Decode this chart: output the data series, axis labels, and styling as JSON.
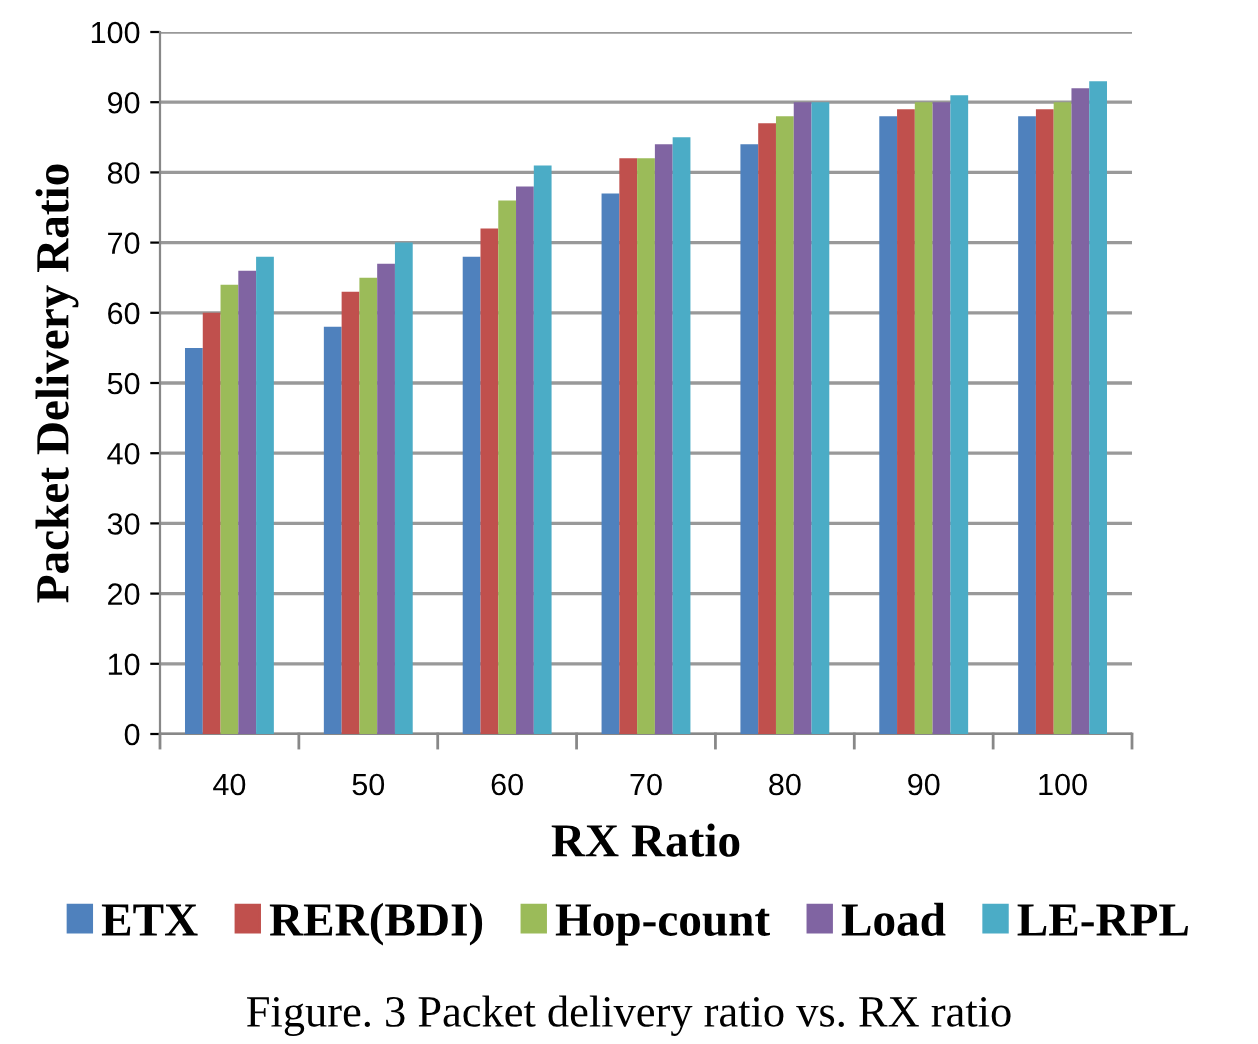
{
  "chart_data": {
    "type": "bar",
    "xlabel": "RX Ratio",
    "ylabel": "Packet Delivery Ratio",
    "categories": [
      "40",
      "50",
      "60",
      "70",
      "80",
      "90",
      "100"
    ],
    "series": [
      {
        "name": "ETX",
        "color": "#4f81bd",
        "values": [
          55,
          58,
          68,
          77,
          84,
          88,
          88
        ]
      },
      {
        "name": "RER(BDI)",
        "color": "#c0504d",
        "values": [
          60,
          63,
          72,
          82,
          87,
          89,
          89
        ]
      },
      {
        "name": "Hop-count",
        "color": "#9bbb59",
        "values": [
          64,
          65,
          76,
          82,
          88,
          90,
          90
        ]
      },
      {
        "name": "Load",
        "color": "#8064a2",
        "values": [
          66,
          67,
          78,
          84,
          90,
          90,
          92
        ]
      },
      {
        "name": "LE-RPL",
        "color": "#4bacc6",
        "values": [
          68,
          70,
          81,
          85,
          90,
          91,
          93
        ]
      }
    ],
    "ylim": [
      0,
      100
    ],
    "yticks": [
      0,
      10,
      20,
      30,
      40,
      50,
      60,
      70,
      80,
      90,
      100
    ],
    "grid": "y",
    "legend": "bottom",
    "annotations": [
      "Figure. 3 Packet delivery ratio vs. RX ratio"
    ]
  }
}
